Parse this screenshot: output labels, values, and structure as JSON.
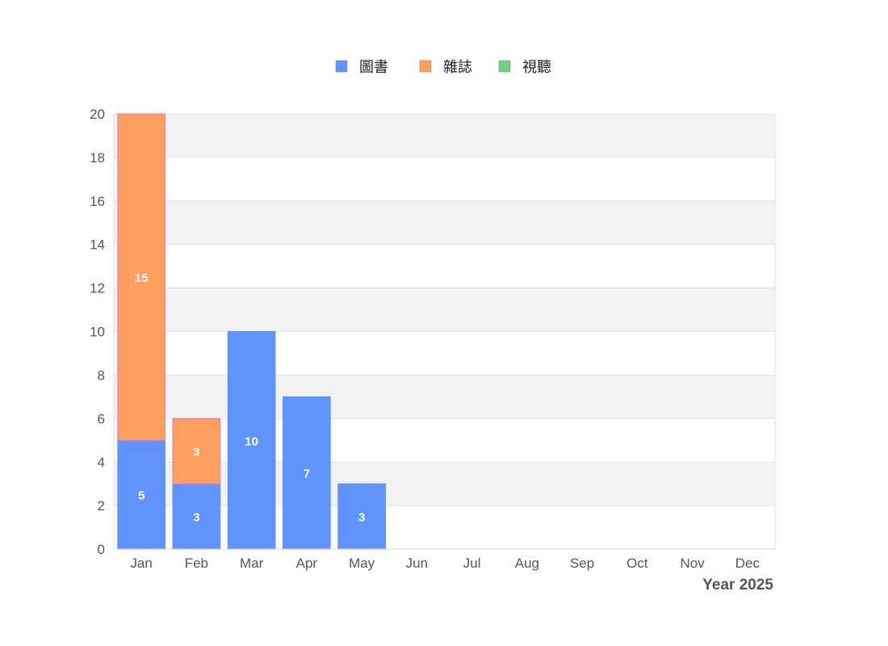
{
  "chart_data": {
    "type": "bar",
    "stacked": true,
    "categories": [
      "Jan",
      "Feb",
      "Mar",
      "Apr",
      "May",
      "Jun",
      "Jul",
      "Aug",
      "Sep",
      "Oct",
      "Nov",
      "Dec"
    ],
    "series": [
      {
        "name": "圖書",
        "color": "#6094fa",
        "values": [
          5,
          3,
          10,
          7,
          3,
          0,
          0,
          0,
          0,
          0,
          0,
          0
        ]
      },
      {
        "name": "雜誌",
        "color": "#ff9f5f",
        "values": [
          15,
          3,
          0,
          0,
          0,
          0,
          0,
          0,
          0,
          0,
          0,
          0
        ]
      },
      {
        "name": "視聽",
        "color": "#71d17e",
        "values": [
          0,
          0,
          0,
          0,
          0,
          0,
          0,
          0,
          0,
          0,
          0,
          0
        ]
      }
    ],
    "xlabel": "Year 2025",
    "ylabel": "",
    "ylim": [
      0,
      20
    ],
    "yticks": [
      0,
      2,
      4,
      6,
      8,
      10,
      12,
      14,
      16,
      18,
      20
    ],
    "grid": true,
    "alternating_bands": true,
    "band_color": "#f3f3f3",
    "data_labels": true,
    "legend_position": "top-center"
  }
}
